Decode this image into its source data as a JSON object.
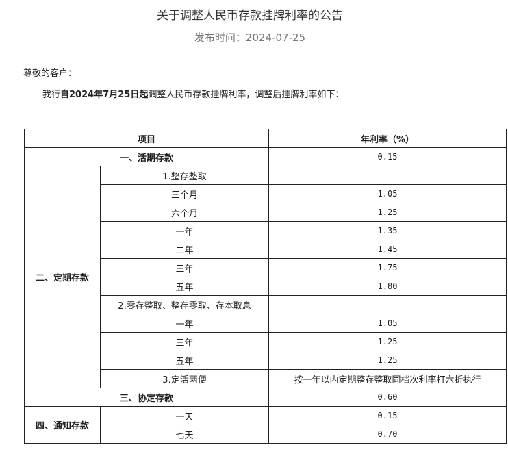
{
  "title": "关于调整人民币存款挂牌利率的公告",
  "date": "发布时间：2024-07-25",
  "greeting": "尊敬的客户：",
  "intro": {
    "pre": "我行",
    "bold": "自2024年7月25日起",
    "post": "调整人民币存款挂牌利率，调整后挂牌利率如下："
  },
  "table": {
    "headers": [
      "项目",
      "年利率（%）"
    ],
    "demand": {
      "label": "一、活期存款",
      "rate": "0.15"
    },
    "fixed": {
      "label": "二、定期存款",
      "rows": [
        {
          "item": "1.整存整取",
          "rate": ""
        },
        {
          "item": "三个月",
          "rate": "1.05"
        },
        {
          "item": "六个月",
          "rate": "1.25"
        },
        {
          "item": "一年",
          "rate": "1.35"
        },
        {
          "item": "二年",
          "rate": "1.45"
        },
        {
          "item": "三年",
          "rate": "1.75"
        },
        {
          "item": "五年",
          "rate": "1.80"
        },
        {
          "item": "2.零存整取、整存零取、存本取息",
          "rate": ""
        },
        {
          "item": "一年",
          "rate": "1.05"
        },
        {
          "item": "三年",
          "rate": "1.25"
        },
        {
          "item": "五年",
          "rate": "1.25"
        },
        {
          "item": "3.定活两便",
          "rate": "按一年以内定期整存整取同档次利率打六折执行"
        }
      ]
    },
    "agreement": {
      "label": "三、协定存款",
      "rate": "0.60"
    },
    "notice": {
      "label": "四、通知存款",
      "rows": [
        {
          "item": "一天",
          "rate": "0.15"
        },
        {
          "item": "七天",
          "rate": "0.70"
        }
      ]
    }
  }
}
